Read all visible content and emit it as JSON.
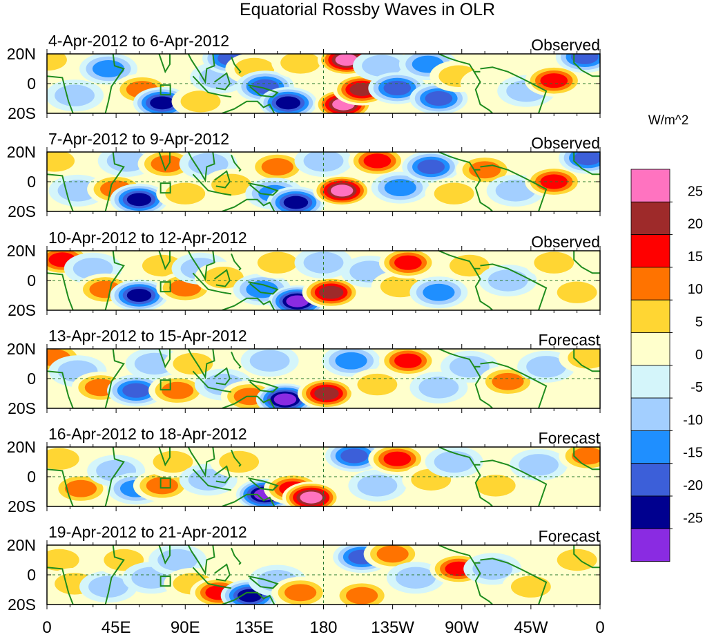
{
  "chart_data": {
    "type": "heatmap",
    "title": "Equatorial Rossby Waves in OLR",
    "units": "W/m^2",
    "lon_ticks": [
      "0",
      "45E",
      "90E",
      "135E",
      "180",
      "135W",
      "90W",
      "45W",
      "0"
    ],
    "lat_ticks": [
      "20N",
      "0",
      "20S"
    ],
    "lon_range_deg_east": [
      0,
      360
    ],
    "lat_range_deg": [
      -20,
      20
    ],
    "colorbar": {
      "labels": [
        "25",
        "20",
        "15",
        "10",
        "5",
        "0",
        "-5",
        "-10",
        "-15",
        "-20",
        "-25"
      ],
      "bins": [
        {
          "range": ">25",
          "color": "#ff73c0"
        },
        {
          "range": "20 to 25",
          "color": "#9e2a2a"
        },
        {
          "range": "15 to 20",
          "color": "#ff0000"
        },
        {
          "range": "10 to 15",
          "color": "#ff7300"
        },
        {
          "range": "5 to 10",
          "color": "#ffd633"
        },
        {
          "range": "0 to 5",
          "color": "#ffffcc"
        },
        {
          "range": "-5 to 0",
          "color": "#d4f5fa"
        },
        {
          "range": "-10 to -5",
          "color": "#a3cfff"
        },
        {
          "range": "-15 to -10",
          "color": "#1f8fff"
        },
        {
          "range": "-20 to -15",
          "color": "#3c5fd9"
        },
        {
          "range": "-25 to -20",
          "color": "#00008f"
        },
        {
          "range": "<-25",
          "color": "#8a2be2"
        }
      ]
    },
    "panels": [
      {
        "dates": "4-Apr-2012 to 6-Apr-2012",
        "status": "Observed",
        "features": [
          {
            "lon": 0,
            "lat": 16,
            "value": 10
          },
          {
            "lon": 28,
            "lat": 5,
            "value": 5
          },
          {
            "lon": 40,
            "lat": 10,
            "value": -15
          },
          {
            "lon": 18,
            "lat": -8,
            "value": -8
          },
          {
            "lon": 62,
            "lat": -4,
            "value": 15
          },
          {
            "lon": 75,
            "lat": -13,
            "value": -25
          },
          {
            "lon": 100,
            "lat": -12,
            "value": 12
          },
          {
            "lon": 112,
            "lat": 4,
            "value": -12
          },
          {
            "lon": 120,
            "lat": 17,
            "value": -18
          },
          {
            "lon": 135,
            "lat": 10,
            "value": 12
          },
          {
            "lon": 142,
            "lat": -2,
            "value": -18
          },
          {
            "lon": 157,
            "lat": -13,
            "value": -25
          },
          {
            "lon": 165,
            "lat": 14,
            "value": 8
          },
          {
            "lon": 195,
            "lat": 16,
            "value": 28
          },
          {
            "lon": 193,
            "lat": -14,
            "value": 30
          },
          {
            "lon": 205,
            "lat": -4,
            "value": 26
          },
          {
            "lon": 218,
            "lat": 12,
            "value": -10
          },
          {
            "lon": 228,
            "lat": -3,
            "value": -18
          },
          {
            "lon": 248,
            "lat": 13,
            "value": -15
          },
          {
            "lon": 255,
            "lat": -10,
            "value": -22
          },
          {
            "lon": 268,
            "lat": 5,
            "value": 12
          },
          {
            "lon": 288,
            "lat": 0,
            "value": 6
          },
          {
            "lon": 312,
            "lat": -5,
            "value": -8
          },
          {
            "lon": 330,
            "lat": 2,
            "value": 18
          },
          {
            "lon": 350,
            "lat": 18,
            "value": -20
          }
        ]
      },
      {
        "dates": "7-Apr-2012 to 9-Apr-2012",
        "status": "Observed",
        "features": [
          {
            "lon": 5,
            "lat": 14,
            "value": 10
          },
          {
            "lon": 20,
            "lat": -6,
            "value": -10
          },
          {
            "lon": 45,
            "lat": -5,
            "value": 15
          },
          {
            "lon": 60,
            "lat": -12,
            "value": -25
          },
          {
            "lon": 52,
            "lat": 14,
            "value": -10
          },
          {
            "lon": 78,
            "lat": 12,
            "value": 14
          },
          {
            "lon": 90,
            "lat": -8,
            "value": 12
          },
          {
            "lon": 105,
            "lat": 12,
            "value": -12
          },
          {
            "lon": 120,
            "lat": -2,
            "value": 8
          },
          {
            "lon": 150,
            "lat": 10,
            "value": 14
          },
          {
            "lon": 148,
            "lat": -8,
            "value": -15
          },
          {
            "lon": 162,
            "lat": -14,
            "value": -25
          },
          {
            "lon": 192,
            "lat": -6,
            "value": 28
          },
          {
            "lon": 180,
            "lat": 14,
            "value": -12
          },
          {
            "lon": 215,
            "lat": 14,
            "value": 18
          },
          {
            "lon": 230,
            "lat": -4,
            "value": -15
          },
          {
            "lon": 250,
            "lat": 10,
            "value": -20
          },
          {
            "lon": 265,
            "lat": -8,
            "value": 10
          },
          {
            "lon": 285,
            "lat": 8,
            "value": 14
          },
          {
            "lon": 305,
            "lat": -6,
            "value": -10
          },
          {
            "lon": 330,
            "lat": 0,
            "value": 18
          },
          {
            "lon": 352,
            "lat": 16,
            "value": -20
          }
        ]
      },
      {
        "dates": "10-Apr-2012 to 12-Apr-2012",
        "status": "Observed",
        "features": [
          {
            "lon": 10,
            "lat": 14,
            "value": 18
          },
          {
            "lon": 30,
            "lat": 8,
            "value": -10
          },
          {
            "lon": 38,
            "lat": -6,
            "value": 15
          },
          {
            "lon": 60,
            "lat": -10,
            "value": -25
          },
          {
            "lon": 75,
            "lat": 10,
            "value": 8
          },
          {
            "lon": 90,
            "lat": -5,
            "value": 15
          },
          {
            "lon": 100,
            "lat": 8,
            "value": -10
          },
          {
            "lon": 115,
            "lat": 2,
            "value": 12
          },
          {
            "lon": 140,
            "lat": -6,
            "value": -15
          },
          {
            "lon": 150,
            "lat": 12,
            "value": 10
          },
          {
            "lon": 163,
            "lat": -14,
            "value": -28
          },
          {
            "lon": 185,
            "lat": -8,
            "value": 26
          },
          {
            "lon": 180,
            "lat": 12,
            "value": -10
          },
          {
            "lon": 210,
            "lat": 6,
            "value": -12
          },
          {
            "lon": 230,
            "lat": -4,
            "value": 10
          },
          {
            "lon": 235,
            "lat": 12,
            "value": 18
          },
          {
            "lon": 255,
            "lat": -8,
            "value": -15
          },
          {
            "lon": 275,
            "lat": 10,
            "value": 10
          },
          {
            "lon": 300,
            "lat": 0,
            "value": -12
          },
          {
            "lon": 330,
            "lat": 12,
            "value": 10
          },
          {
            "lon": 345,
            "lat": -8,
            "value": 8
          }
        ]
      },
      {
        "dates": "13-Apr-2012 to 15-Apr-2012",
        "status": "Forecast",
        "features": [
          {
            "lon": 5,
            "lat": 14,
            "value": 15
          },
          {
            "lon": 20,
            "lat": 5,
            "value": -8
          },
          {
            "lon": 35,
            "lat": -6,
            "value": 15
          },
          {
            "lon": 58,
            "lat": -8,
            "value": -22
          },
          {
            "lon": 70,
            "lat": 10,
            "value": -10
          },
          {
            "lon": 85,
            "lat": -8,
            "value": 15
          },
          {
            "lon": 95,
            "lat": 10,
            "value": 12
          },
          {
            "lon": 115,
            "lat": -4,
            "value": -12
          },
          {
            "lon": 132,
            "lat": -12,
            "value": 15
          },
          {
            "lon": 145,
            "lat": 12,
            "value": -10
          },
          {
            "lon": 155,
            "lat": -14,
            "value": -28
          },
          {
            "lon": 182,
            "lat": -10,
            "value": 26
          },
          {
            "lon": 198,
            "lat": 12,
            "value": -15
          },
          {
            "lon": 215,
            "lat": -4,
            "value": 12
          },
          {
            "lon": 235,
            "lat": 12,
            "value": 18
          },
          {
            "lon": 255,
            "lat": -6,
            "value": -10
          },
          {
            "lon": 275,
            "lat": 8,
            "value": -12
          },
          {
            "lon": 300,
            "lat": -2,
            "value": 15
          },
          {
            "lon": 325,
            "lat": 8,
            "value": -8
          },
          {
            "lon": 352,
            "lat": 14,
            "value": 12
          }
        ]
      },
      {
        "dates": "16-Apr-2012 to 18-Apr-2012",
        "status": "Forecast",
        "features": [
          {
            "lon": 8,
            "lat": 12,
            "value": 10
          },
          {
            "lon": 22,
            "lat": -8,
            "value": 15
          },
          {
            "lon": 45,
            "lat": 4,
            "value": -10
          },
          {
            "lon": 58,
            "lat": -8,
            "value": -15
          },
          {
            "lon": 75,
            "lat": -6,
            "value": 15
          },
          {
            "lon": 82,
            "lat": 10,
            "value": 8
          },
          {
            "lon": 105,
            "lat": -2,
            "value": -12
          },
          {
            "lon": 125,
            "lat": 10,
            "value": 10
          },
          {
            "lon": 142,
            "lat": -12,
            "value": -28
          },
          {
            "lon": 160,
            "lat": -8,
            "value": 22
          },
          {
            "lon": 172,
            "lat": -14,
            "value": 28
          },
          {
            "lon": 200,
            "lat": 14,
            "value": -22
          },
          {
            "lon": 215,
            "lat": -6,
            "value": -10
          },
          {
            "lon": 228,
            "lat": 12,
            "value": 18
          },
          {
            "lon": 250,
            "lat": -2,
            "value": 10
          },
          {
            "lon": 265,
            "lat": 10,
            "value": -12
          },
          {
            "lon": 292,
            "lat": -6,
            "value": 12
          },
          {
            "lon": 320,
            "lat": 8,
            "value": -10
          },
          {
            "lon": 352,
            "lat": 14,
            "value": 15
          }
        ]
      },
      {
        "dates": "19-Apr-2012 to 21-Apr-2012",
        "status": "Forecast",
        "features": [
          {
            "lon": 8,
            "lat": 10,
            "value": 10
          },
          {
            "lon": 18,
            "lat": -6,
            "value": 12
          },
          {
            "lon": 40,
            "lat": -8,
            "value": -12
          },
          {
            "lon": 50,
            "lat": 10,
            "value": 10
          },
          {
            "lon": 68,
            "lat": -2,
            "value": -10
          },
          {
            "lon": 85,
            "lat": 10,
            "value": -12
          },
          {
            "lon": 95,
            "lat": -6,
            "value": 12
          },
          {
            "lon": 112,
            "lat": -12,
            "value": 18
          },
          {
            "lon": 132,
            "lat": -14,
            "value": -25
          },
          {
            "lon": 150,
            "lat": -4,
            "value": -12
          },
          {
            "lon": 165,
            "lat": -12,
            "value": 14
          },
          {
            "lon": 205,
            "lat": 12,
            "value": -18
          },
          {
            "lon": 205,
            "lat": -14,
            "value": 16
          },
          {
            "lon": 225,
            "lat": 14,
            "value": 15
          },
          {
            "lon": 240,
            "lat": -2,
            "value": -8
          },
          {
            "lon": 268,
            "lat": 4,
            "value": 20
          },
          {
            "lon": 290,
            "lat": 4,
            "value": -12
          },
          {
            "lon": 315,
            "lat": -8,
            "value": 10
          },
          {
            "lon": 345,
            "lat": 10,
            "value": 8
          }
        ]
      }
    ]
  }
}
